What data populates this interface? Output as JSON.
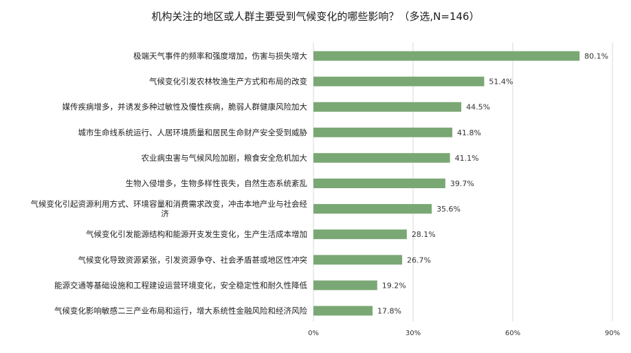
{
  "chart_data": {
    "type": "bar",
    "orientation": "horizontal",
    "title": "机构关注的地区或人群主要受到气候变化的哪些影响？（多选,N=146）",
    "categories": [
      [
        "极端天气事件的频率和强度增加，伤害与损失增大"
      ],
      [
        "气候变化引发农林牧渔生产方式和布局的改变"
      ],
      [
        "媒传疾病增多，并诱发多种过敏性及慢性疾病，脆弱人群健康风险加大"
      ],
      [
        "城市生命线系统运行、人居环境质量和居民生命财产安全受到威胁"
      ],
      [
        "农业病虫害与气候风险加剧，粮食安全危机加大"
      ],
      [
        "生物入侵增多，生物多样性丧失，自然生态系统紊乱"
      ],
      [
        "气候变化引起资源利用方式、环境容量和消费需求改变，冲击本地产业与社会经",
        "济"
      ],
      [
        "气候变化引发能源结构和能源开支发生变化，生产生活成本增加"
      ],
      [
        "气候变化导致资源紧张，引发资源争夺、社会矛盾甚或地区性冲突"
      ],
      [
        "能源交通等基础设施和工程建设运营环境变化，安全稳定性和耐久性降低"
      ],
      [
        "气候变化影响敏感二三产业布局和运行，增大系统性金融风险和经济风险"
      ]
    ],
    "values": [
      80.1,
      51.4,
      44.5,
      41.8,
      41.1,
      39.7,
      35.6,
      28.1,
      26.7,
      19.2,
      17.8
    ],
    "value_labels": [
      "80.1%",
      "51.4%",
      "44.5%",
      "41.8%",
      "41.1%",
      "39.7%",
      "35.6%",
      "28.1%",
      "26.7%",
      "19.2%",
      "17.8%"
    ],
    "xlim": [
      0,
      90
    ],
    "xticks": [
      0,
      30,
      60,
      90
    ],
    "xtick_labels": [
      "0%",
      "30%",
      "60%",
      "90%"
    ],
    "grid": "vertical",
    "legend": "none",
    "bar_color": "#7aa874"
  }
}
